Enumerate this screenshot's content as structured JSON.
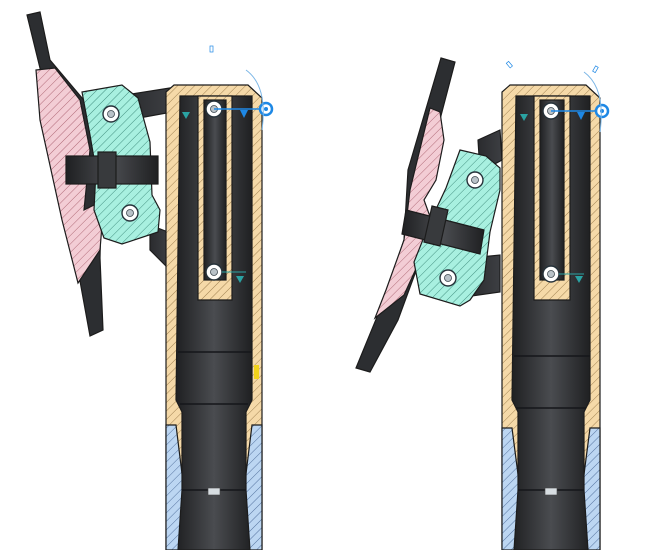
{
  "colors": {
    "background": "#ffffff",
    "housing_fill": "#f5d9a8",
    "housing_hatch": "#8a6a3a",
    "bracket_fill": "#a8f0e0",
    "bracket_hatch": "#2a7a6a",
    "plate_fill": "#f3cdd5",
    "plate_hatch": "#a05060",
    "insert_fill": "#bcd6f2",
    "insert_hatch": "#3a5a8a",
    "dark_part": "#2f3134",
    "selection_blue": "#1e88e5",
    "dimension_teal": "#2aa3a3"
  },
  "views": [
    {
      "name": "section-view-left",
      "state": "upright"
    },
    {
      "name": "section-view-right",
      "state": "tilted"
    }
  ]
}
